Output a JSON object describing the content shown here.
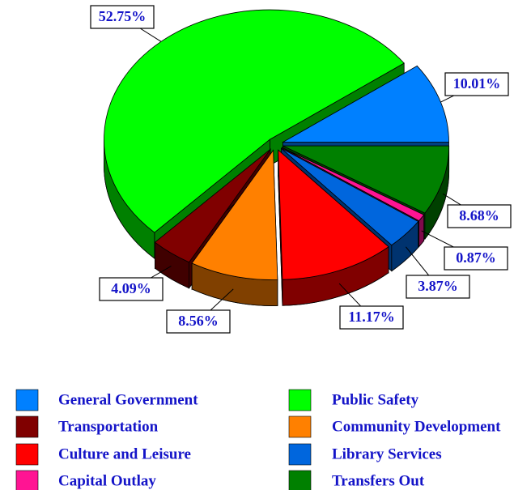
{
  "chart_data": {
    "type": "pie",
    "categories": [
      "General Government",
      "Public Safety",
      "Transportation",
      "Community Development",
      "Culture and Leisure",
      "Library Services",
      "Capital Outlay",
      "Transfers Out"
    ],
    "values": [
      10.01,
      52.75,
      4.09,
      8.56,
      11.17,
      3.87,
      0.87,
      8.68
    ],
    "value_labels": [
      "10.01%",
      "52.75%",
      "4.09%",
      "8.56%",
      "11.17%",
      "3.87%",
      "0.87%",
      "8.68%"
    ],
    "colors": [
      "#0080ff",
      "#00ff00",
      "#800000",
      "#ff8000",
      "#ff0000",
      "#0066dd",
      "#ff1493",
      "#008000"
    ]
  }
}
